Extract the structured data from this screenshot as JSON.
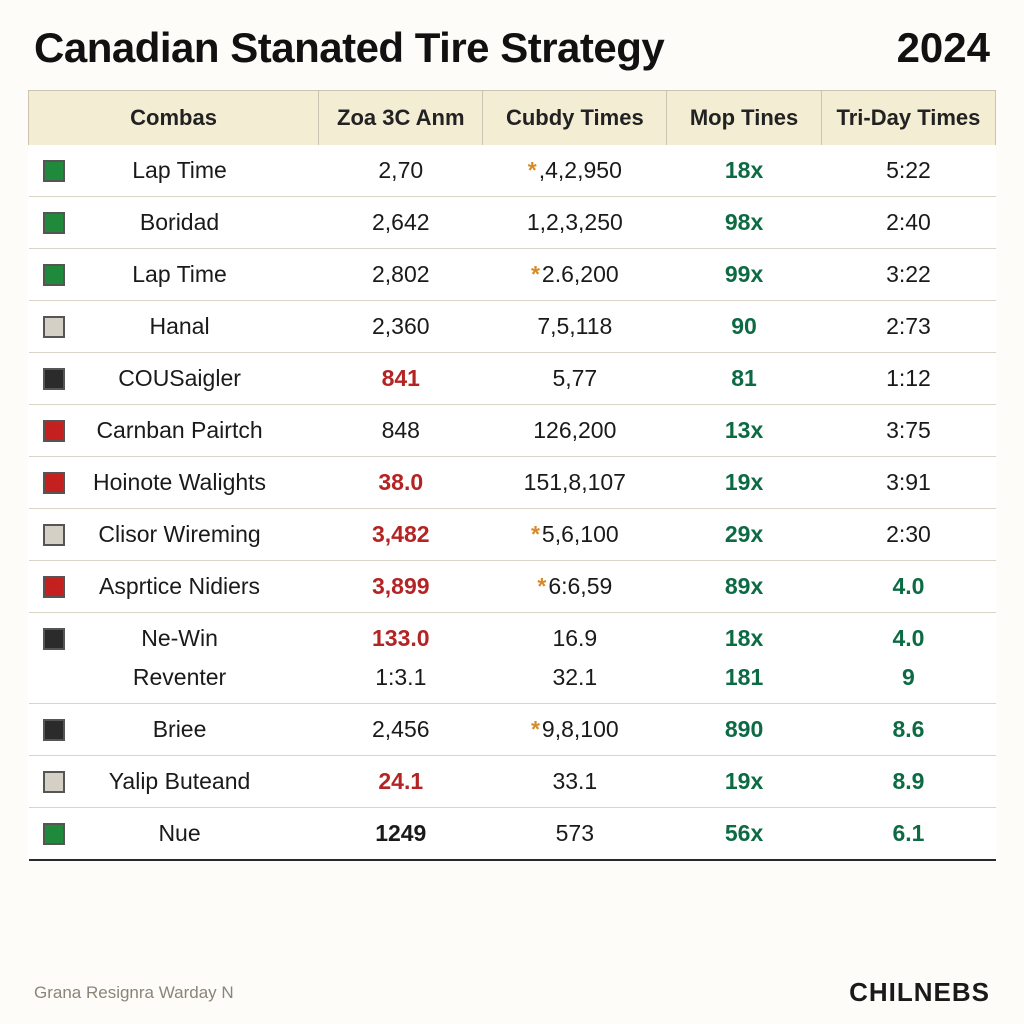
{
  "title": "Canadian Stanated Tire Strategy",
  "year": "2024",
  "footnote": "Grana Resignra Warday N",
  "brand": "CHILNEBS",
  "swatch_colors": {
    "green": "#1f8a3b",
    "gray_light": "#d4d0c6",
    "dark": "#2b2b2b",
    "red": "#c42020",
    "white": "#efede6"
  },
  "table": {
    "columns": [
      "Combas",
      "Zoa 3C Anm",
      "Cubdy Times",
      "Mop Tines",
      "Tri-Day Times"
    ],
    "rows": [
      {
        "swatch": "green",
        "name": "Lap Time",
        "zoa": {
          "v": "2,70"
        },
        "cubdy": {
          "v": ",4,2,950",
          "mark": true
        },
        "mop": {
          "v": "18x",
          "cls": "green"
        },
        "tri": {
          "v": "5:22"
        }
      },
      {
        "swatch": "green",
        "name": "Boridad",
        "zoa": {
          "v": "2,642"
        },
        "cubdy": {
          "v": "1,2,3,250"
        },
        "mop": {
          "v": "98x",
          "cls": "green"
        },
        "tri": {
          "v": "2:40"
        }
      },
      {
        "swatch": "green",
        "name": "Lap Time",
        "zoa": {
          "v": "2,802"
        },
        "cubdy": {
          "v": "2.6,200",
          "mark": true
        },
        "mop": {
          "v": "99x",
          "cls": "green"
        },
        "tri": {
          "v": "3:22"
        }
      },
      {
        "swatch": "gray_light",
        "name": "Hanal",
        "zoa": {
          "v": "2,360"
        },
        "cubdy": {
          "v": "7,5,118"
        },
        "mop": {
          "v": "90",
          "cls": "green"
        },
        "tri": {
          "v": "2:73"
        }
      },
      {
        "swatch": "dark",
        "name": "COUSaigler",
        "zoa": {
          "v": "841",
          "cls": "red"
        },
        "cubdy": {
          "v": "5,77"
        },
        "mop": {
          "v": "81",
          "cls": "green"
        },
        "tri": {
          "v": "1:12"
        }
      },
      {
        "swatch": "red",
        "name": "Carnban Pairtch",
        "zoa": {
          "v": "848"
        },
        "cubdy": {
          "v": "126,200"
        },
        "mop": {
          "v": "13x",
          "cls": "green"
        },
        "tri": {
          "v": "3:75"
        }
      },
      {
        "swatch": "red",
        "name": "Hoinote Walights",
        "zoa": {
          "v": "38.0",
          "cls": "red"
        },
        "cubdy": {
          "v": "151,8,107"
        },
        "mop": {
          "v": "19x",
          "cls": "green"
        },
        "tri": {
          "v": "3:91"
        }
      },
      {
        "swatch": "gray_light",
        "name": "Clisor Wireming",
        "zoa": {
          "v": "3,482",
          "cls": "red"
        },
        "cubdy": {
          "v": "5,6,100",
          "mark": true
        },
        "mop": {
          "v": "29x",
          "cls": "green"
        },
        "tri": {
          "v": "2:30"
        }
      },
      {
        "swatch": "red",
        "name": "Asprtice Nidiers",
        "zoa": {
          "v": "3,899",
          "cls": "red"
        },
        "cubdy": {
          "v": "6:6,59",
          "mark": true
        },
        "mop": {
          "v": "89x",
          "cls": "green"
        },
        "tri": {
          "v": "4.0",
          "cls": "green"
        }
      },
      {
        "swatch": "dark",
        "name": "Ne-Win",
        "zoa": {
          "v": "133.0",
          "cls": "red"
        },
        "cubdy": {
          "v": "16.9"
        },
        "mop": {
          "v": "18x",
          "cls": "green"
        },
        "tri": {
          "v": "4.0",
          "cls": "green"
        },
        "sub": {
          "name": "Reventer",
          "zoa": {
            "v": "1:3.1"
          },
          "cubdy": {
            "v": "32.1"
          },
          "mop": {
            "v": "181",
            "cls": "green"
          },
          "tri": {
            "v": "9",
            "cls": "green"
          }
        }
      },
      {
        "swatch": "dark",
        "name": "Briee",
        "zoa": {
          "v": "2,456"
        },
        "cubdy": {
          "v": "9,8,100",
          "mark": true
        },
        "mop": {
          "v": "890",
          "cls": "green"
        },
        "tri": {
          "v": "8.6",
          "cls": "green"
        }
      },
      {
        "swatch": "gray_light",
        "name": "Yalip Buteand",
        "zoa": {
          "v": "24.1",
          "cls": "red"
        },
        "cubdy": {
          "v": "33.1"
        },
        "mop": {
          "v": "19x",
          "cls": "green"
        },
        "tri": {
          "v": "8.9",
          "cls": "green"
        }
      },
      {
        "swatch": "green",
        "name": "Nue",
        "zoa": {
          "v": "1249",
          "cls": "bold"
        },
        "cubdy": {
          "v": "573"
        },
        "mop": {
          "v": "56x",
          "cls": "green"
        },
        "tri": {
          "v": "6.1",
          "cls": "green"
        }
      }
    ]
  }
}
